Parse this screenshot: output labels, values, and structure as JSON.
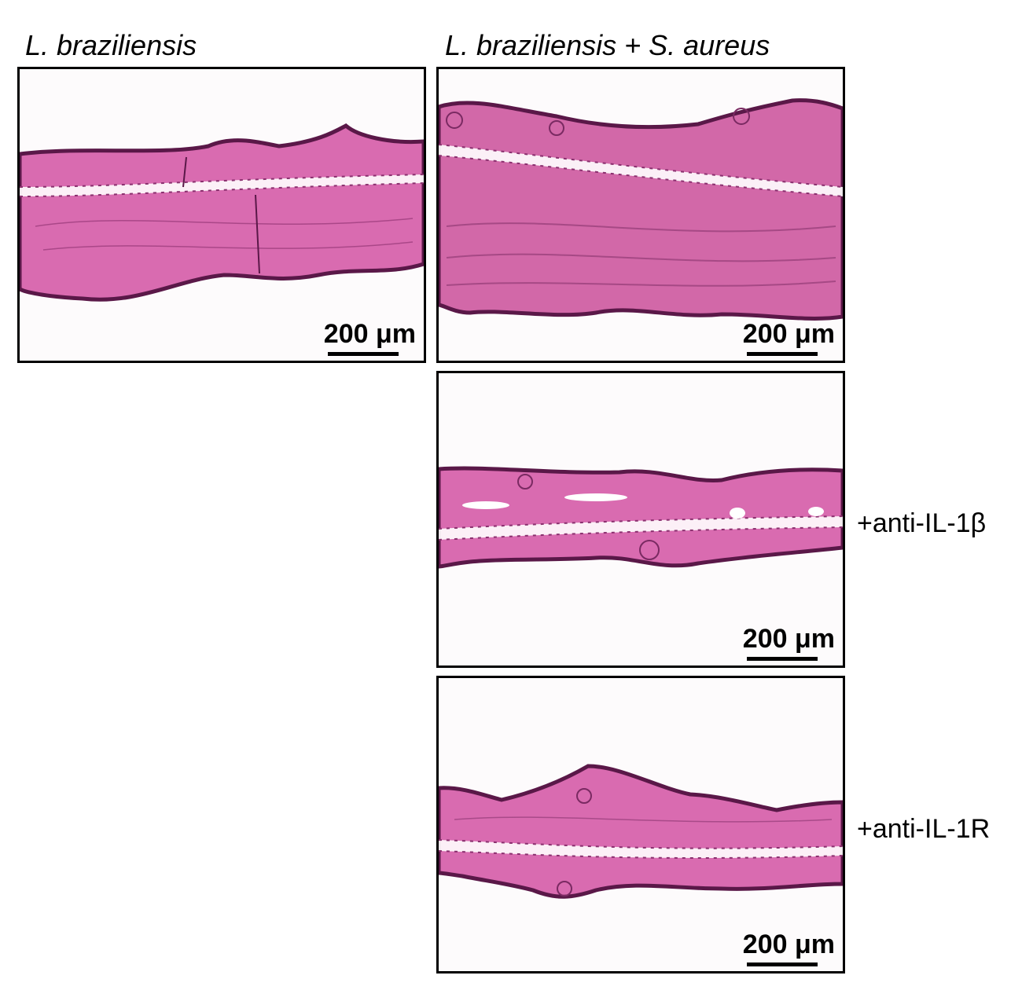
{
  "figure": {
    "column_titles": [
      "L. braziliensis",
      "L. braziliensis + S. aureus"
    ],
    "panels": [
      {
        "id": "lb",
        "scale_label": "200 μm",
        "treatment": ""
      },
      {
        "id": "lb-sa",
        "scale_label": "200 μm",
        "treatment": ""
      },
      {
        "id": "lb-sa-anti-il1b",
        "scale_label": "200 μm",
        "treatment": "+anti-IL-1β"
      },
      {
        "id": "lb-sa-anti-il1r",
        "scale_label": "200 μm",
        "treatment": "+anti-IL-1R"
      }
    ],
    "colors": {
      "tissue": "#d96bb0",
      "tissue_dark": "#8a2f6e",
      "epidermis": "#5a1848",
      "fat_cells": "#ffffff",
      "background": "#fdfbfc",
      "border": "#000000"
    }
  }
}
